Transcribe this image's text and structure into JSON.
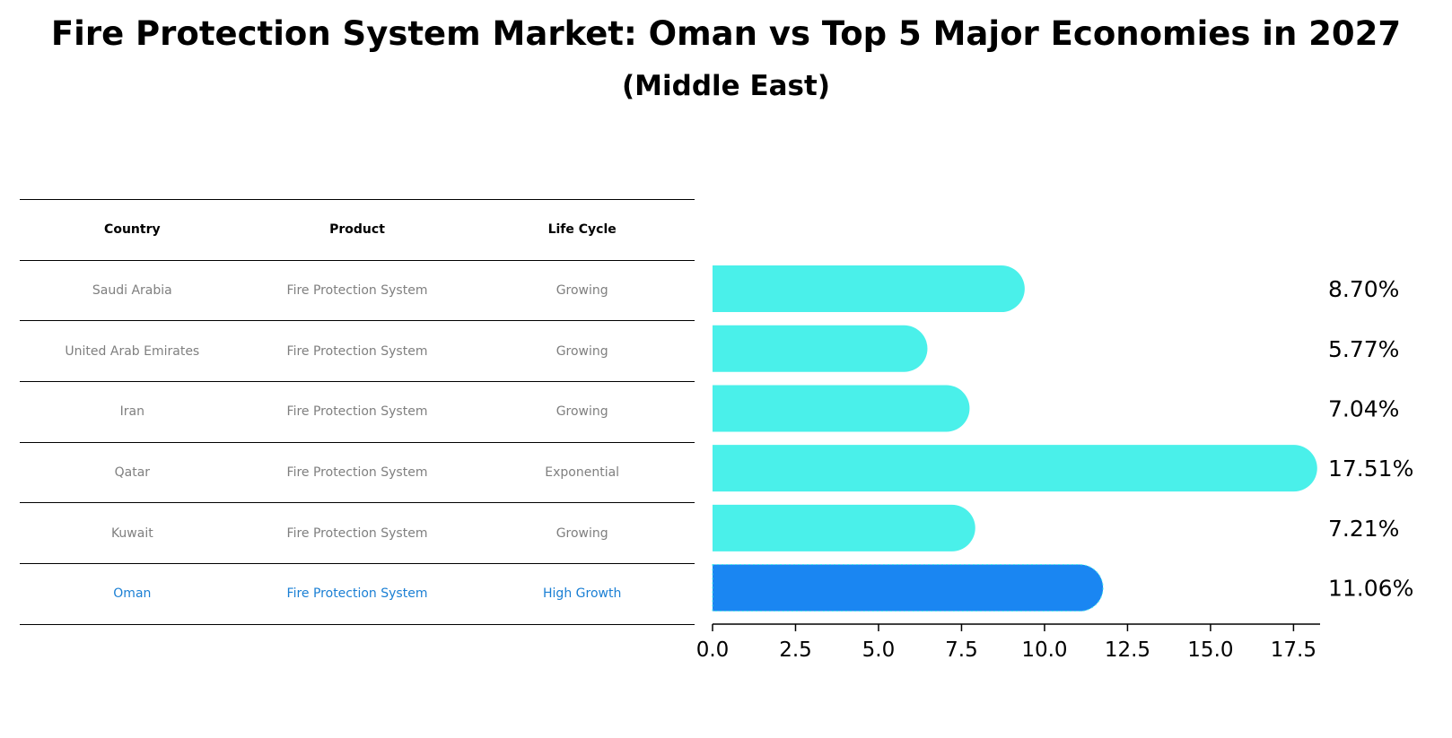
{
  "title": "Fire Protection System Market: Oman vs Top 5 Major Economies in 2027",
  "subtitle": "(Middle East)",
  "table": {
    "headers": [
      "Country",
      "Product",
      "Life Cycle"
    ],
    "rows": [
      {
        "country": "Saudi Arabia",
        "product": "Fire Protection System",
        "life_cycle": "Growing"
      },
      {
        "country": "United Arab Emirates",
        "product": "Fire Protection System",
        "life_cycle": "Growing"
      },
      {
        "country": "Iran",
        "product": "Fire Protection System",
        "life_cycle": "Growing"
      },
      {
        "country": "Qatar",
        "product": "Fire Protection System",
        "life_cycle": "Exponential"
      },
      {
        "country": "Kuwait",
        "product": "Fire Protection System",
        "life_cycle": "Growing"
      },
      {
        "country": "Oman",
        "product": "Fire Protection System",
        "life_cycle": "High Growth"
      }
    ]
  },
  "chart_data": {
    "type": "bar",
    "orientation": "horizontal",
    "categories": [
      "Saudi Arabia",
      "United Arab Emirates",
      "Iran",
      "Qatar",
      "Kuwait",
      "Oman"
    ],
    "values": [
      8.7,
      5.77,
      7.04,
      17.51,
      7.21,
      11.06
    ],
    "value_labels": [
      "8.70%",
      "5.77%",
      "7.04%",
      "17.51%",
      "7.21%",
      "11.06%"
    ],
    "highlight_category": "Oman",
    "xlim": [
      0,
      18.3
    ],
    "xticks": [
      0.0,
      2.5,
      5.0,
      7.5,
      10.0,
      12.5,
      15.0,
      17.5
    ],
    "xtick_labels": [
      "0.0",
      "2.5",
      "5.0",
      "7.5",
      "10.0",
      "12.5",
      "15.0",
      "17.5"
    ],
    "colors": {
      "default": "#4af0ea",
      "highlight": "#1a86f2"
    },
    "title": "Fire Protection System Market: Oman vs Top 5 Major Economies in 2027",
    "xlabel": "",
    "ylabel": ""
  }
}
